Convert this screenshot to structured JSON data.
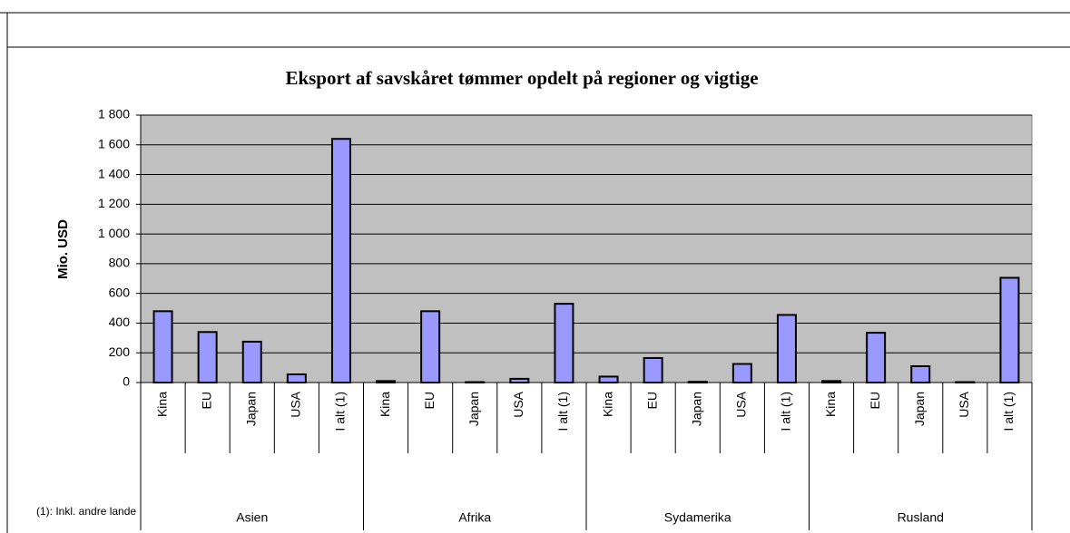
{
  "chart_data": {
    "type": "bar",
    "title": "Eksport af savskåret tømmer opdelt på regioner og vigtige",
    "y_label": "Mio. USD",
    "footnote": "(1): Inkl. andre lande",
    "groups": [
      "Asien",
      "Afrika",
      "Sydamerika",
      "Rusland"
    ],
    "categories": [
      "Kina",
      "EU",
      "Japan",
      "USA",
      "I alt (1)",
      "Kina",
      "EU",
      "Japan",
      "USA",
      "I alt (1)",
      "Kina",
      "EU",
      "Japan",
      "USA",
      "I alt (1)",
      "Kina",
      "EU",
      "Japan",
      "USA",
      "I alt (1)"
    ],
    "values": [
      480,
      340,
      275,
      55,
      1640,
      10,
      480,
      3,
      25,
      530,
      40,
      165,
      5,
      125,
      455,
      10,
      335,
      110,
      3,
      705
    ],
    "color": "#9999ff",
    "plot_background": "#c0c0c0",
    "ylim": [
      0,
      1800
    ],
    "yticks": [
      0,
      200,
      400,
      600,
      800,
      {
        "value": 1000,
        "label": "1 000"
      },
      {
        "value": 1200,
        "label": "1 200"
      },
      {
        "value": 1400,
        "label": "1 400"
      },
      {
        "value": 1600,
        "label": "1 600"
      },
      {
        "value": 1800,
        "label": "1 800"
      }
    ],
    "grid": true
  }
}
